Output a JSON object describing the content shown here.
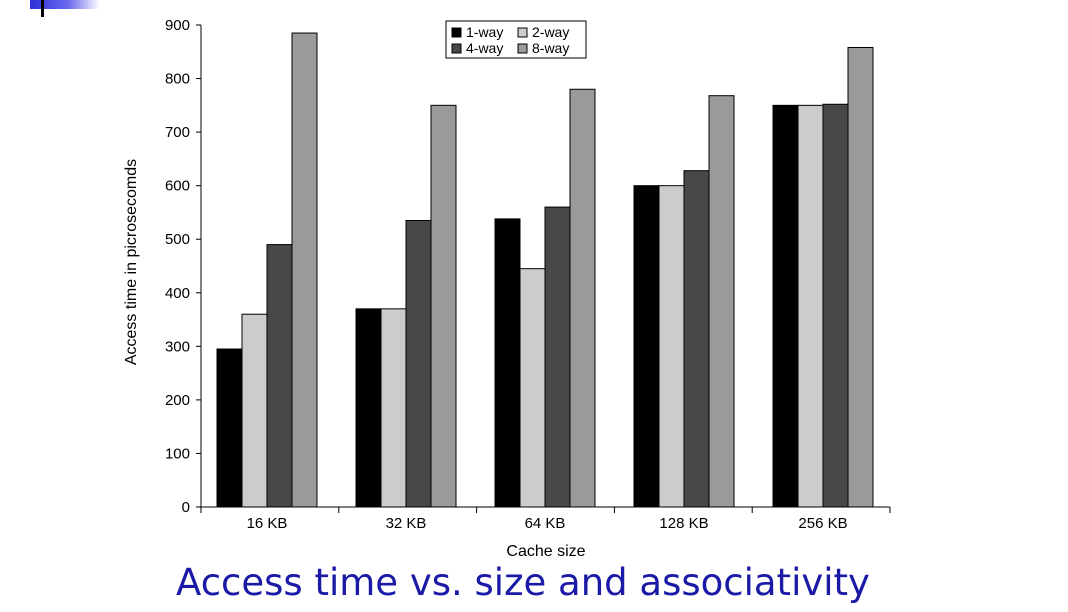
{
  "slide": {
    "title": "Access time vs. size and associativity"
  },
  "chart_data": {
    "type": "bar",
    "xlabel": "Cache size",
    "ylabel": "Access time in picrosecomds",
    "ylim": [
      0,
      900
    ],
    "yticks": [
      "0",
      "100",
      "200",
      "300",
      "400",
      "500",
      "600",
      "700",
      "800",
      "900"
    ],
    "categories": [
      "16 KB",
      "32 KB",
      "64 KB",
      "128 KB",
      "256 KB"
    ],
    "series": [
      {
        "name": "1-way",
        "color": "#000000",
        "values": [
          295,
          370,
          538,
          600,
          750
        ]
      },
      {
        "name": "2-way",
        "color": "#cccccc",
        "values": [
          360,
          370,
          445,
          600,
          750
        ]
      },
      {
        "name": "4-way",
        "color": "#484848",
        "values": [
          490,
          535,
          560,
          628,
          752
        ]
      },
      {
        "name": "8-way",
        "color": "#9a9a9a",
        "values": [
          885,
          750,
          780,
          768,
          858
        ]
      }
    ],
    "legend": "top-center",
    "grid": false
  }
}
